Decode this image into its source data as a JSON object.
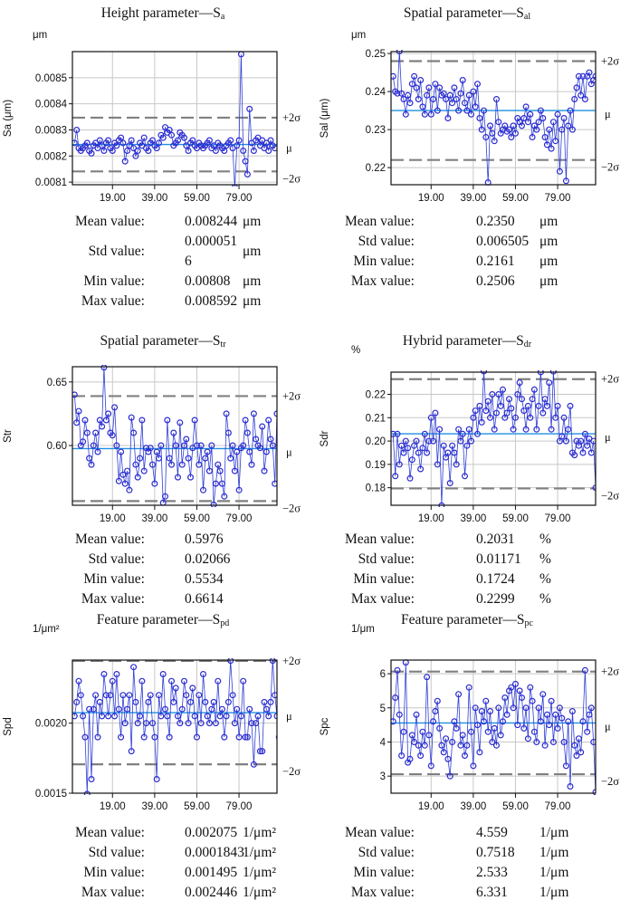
{
  "panels": [
    {
      "title_main": "Height parameter—S",
      "title_sub": "a",
      "chart_data": {
        "type": "line",
        "title": "Height parameter—Sa",
        "unit_label": "μm",
        "ylabel": "Sa (μm)",
        "ylim": [
          0.00809,
          0.0086
        ],
        "yticks": [
          0.0081,
          0.0082,
          0.0083,
          0.0084,
          0.0085
        ],
        "ytick_labels": [
          "0.0081",
          "0.0082",
          "0.0083",
          "0.0084",
          "0.0085"
        ],
        "xlim": [
          0,
          97
        ],
        "xticks": [
          19,
          39,
          59,
          79
        ],
        "xtick_labels": [
          "19.00",
          "39.00",
          "59.00",
          "79.00"
        ],
        "mean": 0.008244,
        "plus2sigma": 0.008347,
        "minus2sigma": 0.008141,
        "line_labels": {
          "plus": "+2σ",
          "mean": "μ",
          "minus": "−2σ"
        },
        "values": [
          0.00825,
          0.0083,
          0.00823,
          0.00822,
          0.00823,
          0.00824,
          0.00825,
          0.00822,
          0.00821,
          0.00824,
          0.00825,
          0.00823,
          0.00826,
          0.00824,
          0.00822,
          0.00825,
          0.00826,
          0.00823,
          0.00822,
          0.00825,
          0.00824,
          0.00826,
          0.00827,
          0.00825,
          0.00818,
          0.00822,
          0.00824,
          0.00826,
          0.00823,
          0.0082,
          0.00822,
          0.00825,
          0.00824,
          0.00827,
          0.00823,
          0.00822,
          0.00825,
          0.00826,
          0.00824,
          0.00823,
          0.00825,
          0.00828,
          0.00827,
          0.00831,
          0.00829,
          0.0083,
          0.00828,
          0.00824,
          0.00825,
          0.00826,
          0.00829,
          0.00828,
          0.00827,
          0.00824,
          0.00822,
          0.00825,
          0.00826,
          0.00824,
          0.00823,
          0.00825,
          0.00824,
          0.00823,
          0.00824,
          0.00825,
          0.00826,
          0.00823,
          0.00824,
          0.00822,
          0.00825,
          0.00824,
          0.00823,
          0.00822,
          0.00824,
          0.00825,
          0.00826,
          0.00823,
          0.00808,
          0.00824,
          0.00826,
          0.00859,
          0.00822,
          0.00818,
          0.00813,
          0.00838,
          0.00825,
          0.00822,
          0.00826,
          0.00827,
          0.00824,
          0.00826,
          0.00823,
          0.00825,
          0.00822,
          0.00826,
          0.00824,
          0.00823
        ]
      },
      "stats": [
        {
          "label": "Mean value:",
          "value": "0.008244",
          "unit": "μm"
        },
        {
          "label": "Std value:",
          "value": "0.000051\n6",
          "unit": "μm"
        },
        {
          "label": "Min value:",
          "value": "0.00808",
          "unit": "μm"
        },
        {
          "label": "Max value:",
          "value": "0.008592",
          "unit": "μm"
        }
      ]
    },
    {
      "title_main": "Spatial parameter—S",
      "title_sub": "al",
      "chart_data": {
        "type": "line",
        "title": "Spatial parameter—Sal",
        "unit_label": "μm",
        "ylabel": "Sal (μm)",
        "ylim": [
          0.2155,
          0.2505
        ],
        "yticks": [
          0.22,
          0.23,
          0.24,
          0.25
        ],
        "ytick_labels": [
          "0.22",
          "0.23",
          "0.24",
          "0.25"
        ],
        "xlim": [
          0,
          97
        ],
        "xticks": [
          19,
          39,
          59,
          79
        ],
        "xtick_labels": [
          "19.00",
          "39.00",
          "59.00",
          "79.00"
        ],
        "mean": 0.235,
        "plus2sigma": 0.248,
        "minus2sigma": 0.222,
        "line_labels": {
          "plus": "+2σ",
          "mean": "μ",
          "minus": "−2σ"
        },
        "values": [
          0.244,
          0.24,
          0.2395,
          0.2506,
          0.2395,
          0.238,
          0.234,
          0.239,
          0.237,
          0.242,
          0.244,
          0.241,
          0.238,
          0.243,
          0.236,
          0.234,
          0.239,
          0.241,
          0.234,
          0.238,
          0.242,
          0.235,
          0.241,
          0.239,
          0.2395,
          0.238,
          0.233,
          0.239,
          0.237,
          0.241,
          0.238,
          0.235,
          0.2395,
          0.243,
          0.237,
          0.235,
          0.239,
          0.234,
          0.24,
          0.236,
          0.242,
          0.233,
          0.23,
          0.235,
          0.228,
          0.2161,
          0.231,
          0.229,
          0.227,
          0.238,
          0.232,
          0.229,
          0.23,
          0.231,
          0.2295,
          0.23,
          0.228,
          0.231,
          0.229,
          0.233,
          0.232,
          0.231,
          0.233,
          0.236,
          0.232,
          0.234,
          0.228,
          0.231,
          0.23,
          0.232,
          0.235,
          0.233,
          0.228,
          0.226,
          0.23,
          0.225,
          0.232,
          0.227,
          0.234,
          0.219,
          0.23,
          0.233,
          0.2165,
          0.231,
          0.235,
          0.23,
          0.238,
          0.241,
          0.244,
          0.239,
          0.244,
          0.238,
          0.244,
          0.245,
          0.242,
          0.243,
          0.244
        ]
      },
      "stats": [
        {
          "label": "Mean value:",
          "value": "0.2350",
          "unit": "μm"
        },
        {
          "label": "Std value:",
          "value": "0.006505",
          "unit": "μm"
        },
        {
          "label": "Min value:",
          "value": "0.2161",
          "unit": "μm"
        },
        {
          "label": "Max value:",
          "value": "0.2506",
          "unit": "μm"
        }
      ]
    },
    {
      "title_main": "Spatial parameter—S",
      "title_sub": "tr",
      "chart_data": {
        "type": "line",
        "title": "Spatial parameter—Str",
        "unit_label": "",
        "ylabel": "Str",
        "ylim": [
          0.553,
          0.662
        ],
        "yticks": [
          0.6,
          0.65
        ],
        "ytick_labels": [
          "0.60",
          "0.65"
        ],
        "xlim": [
          0,
          97
        ],
        "xticks": [
          19,
          39,
          59,
          79
        ],
        "xtick_labels": [
          "19.00",
          "39.00",
          "59.00",
          "79.00"
        ],
        "mean": 0.5976,
        "plus2sigma": 0.6389,
        "minus2sigma": 0.5563,
        "line_labels": {
          "plus": "+2σ",
          "mean": "μ",
          "minus": "−2σ"
        },
        "values": [
          0.64,
          0.618,
          0.627,
          0.6,
          0.603,
          0.62,
          0.61,
          0.59,
          0.585,
          0.6,
          0.61,
          0.595,
          0.62,
          0.615,
          0.6614,
          0.62,
          0.625,
          0.61,
          0.608,
          0.63,
          0.6,
          0.572,
          0.595,
          0.577,
          0.57,
          0.58,
          0.565,
          0.622,
          0.61,
          0.585,
          0.575,
          0.59,
          0.62,
          0.58,
          0.598,
          0.595,
          0.598,
          0.585,
          0.57,
          0.595,
          0.59,
          0.6,
          0.555,
          0.56,
          0.62,
          0.59,
          0.585,
          0.61,
          0.6,
          0.575,
          0.618,
          0.585,
          0.6,
          0.605,
          0.59,
          0.575,
          0.598,
          0.62,
          0.6,
          0.585,
          0.6,
          0.565,
          0.59,
          0.595,
          0.58,
          0.6,
          0.5534,
          0.57,
          0.585,
          0.58,
          0.57,
          0.56,
          0.625,
          0.61,
          0.59,
          0.6,
          0.58,
          0.595,
          0.565,
          0.598,
          0.6,
          0.62,
          0.61,
          0.595,
          0.585,
          0.625,
          0.605,
          0.6,
          0.598,
          0.615,
          0.58,
          0.595,
          0.62,
          0.605,
          0.6,
          0.57,
          0.625
        ]
      },
      "stats": [
        {
          "label": "Mean value:",
          "value": "0.5976",
          "unit": ""
        },
        {
          "label": "Std value:",
          "value": "0.02066",
          "unit": ""
        },
        {
          "label": "Min value:",
          "value": "0.5534",
          "unit": ""
        },
        {
          "label": "Max value:",
          "value": "0.6614",
          "unit": ""
        }
      ]
    },
    {
      "title_main": "Hybrid parameter—S",
      "title_sub": "dr",
      "chart_data": {
        "type": "line",
        "title": "Hybrid parameter—Sdr",
        "unit_label": "%",
        "ylabel": "Sdr",
        "ylim": [
          0.1725,
          0.2295
        ],
        "yticks": [
          0.18,
          0.19,
          0.2,
          0.21,
          0.22
        ],
        "ytick_labels": [
          "0.18",
          "0.19",
          "0.20",
          "0.21",
          "0.22"
        ],
        "xlim": [
          0,
          97
        ],
        "xticks": [
          19,
          39,
          59,
          79
        ],
        "xtick_labels": [
          "19.00",
          "39.00",
          "59.00",
          "79.00"
        ],
        "mean": 0.2031,
        "plus2sigma": 0.2265,
        "minus2sigma": 0.1797,
        "line_labels": {
          "plus": "+2σ",
          "mean": "μ",
          "minus": "−2σ"
        },
        "values": [
          0.203,
          0.185,
          0.203,
          0.19,
          0.198,
          0.195,
          0.2,
          0.197,
          0.184,
          0.192,
          0.198,
          0.2,
          0.195,
          0.188,
          0.197,
          0.203,
          0.195,
          0.2,
          0.21,
          0.2,
          0.212,
          0.19,
          0.205,
          0.1724,
          0.198,
          0.193,
          0.195,
          0.182,
          0.198,
          0.195,
          0.19,
          0.205,
          0.2,
          0.203,
          0.185,
          0.198,
          0.205,
          0.2,
          0.21,
          0.213,
          0.203,
          0.215,
          0.208,
          0.2299,
          0.213,
          0.217,
          0.21,
          0.22,
          0.205,
          0.212,
          0.22,
          0.215,
          0.222,
          0.21,
          0.212,
          0.218,
          0.214,
          0.205,
          0.21,
          0.22,
          0.225,
          0.218,
          0.213,
          0.205,
          0.215,
          0.21,
          0.218,
          0.222,
          0.205,
          0.215,
          0.2295,
          0.212,
          0.218,
          0.215,
          0.225,
          0.205,
          0.2298,
          0.21,
          0.215,
          0.2,
          0.202,
          0.21,
          0.2,
          0.205,
          0.215,
          0.195,
          0.194,
          0.2,
          0.198,
          0.2,
          0.195,
          0.203,
          0.198,
          0.201,
          0.195,
          0.2,
          0.18
        ]
      },
      "stats": [
        {
          "label": "Mean value:",
          "value": "0.2031",
          "unit": "%"
        },
        {
          "label": "Std value:",
          "value": "0.01171",
          "unit": "%"
        },
        {
          "label": "Min value:",
          "value": "0.1724",
          "unit": "%"
        },
        {
          "label": "Max value:",
          "value": "0.2299",
          "unit": "%"
        }
      ]
    },
    {
      "title_main": "Feature parameter—S",
      "title_sub": "pd",
      "chart_data": {
        "type": "line",
        "title": "Feature parameter—Spd",
        "unit_label": "1/μm²",
        "ylabel": "Spd",
        "ylim": [
          0.0015,
          0.00245
        ],
        "yticks": [
          0.0015,
          0.002
        ],
        "ytick_labels": [
          "0.0015",
          "0.0020"
        ],
        "xlim": [
          0,
          97
        ],
        "xticks": [
          19,
          39,
          59,
          79
        ],
        "xtick_labels": [
          "19.00",
          "39.00",
          "59.00",
          "79.00"
        ],
        "mean": 0.002075,
        "plus2sigma": 0.002444,
        "minus2sigma": 0.001706,
        "line_labels": {
          "plus": "+2σ",
          "mean": "μ",
          "minus": "−2σ"
        },
        "values": [
          0.00205,
          0.00215,
          0.0023,
          0.0022,
          0.00205,
          0.0019,
          0.001495,
          0.0021,
          0.0016,
          0.0021,
          0.0022,
          0.0019,
          0.00215,
          0.00205,
          0.00235,
          0.0022,
          0.00205,
          0.0022,
          0.0023,
          0.00205,
          0.00235,
          0.0021,
          0.0019,
          0.0022,
          0.002,
          0.0021,
          0.0022,
          0.0018,
          0.0024,
          0.00215,
          0.002,
          0.00205,
          0.0023,
          0.0019,
          0.002,
          0.00215,
          0.0022,
          0.002,
          0.0019,
          0.0016,
          0.0022,
          0.00205,
          0.00235,
          0.0021,
          0.00205,
          0.0019,
          0.0023,
          0.00215,
          0.00225,
          0.00205,
          0.002,
          0.0021,
          0.0023,
          0.0022,
          0.002,
          0.00215,
          0.00225,
          0.00205,
          0.0019,
          0.0022,
          0.002,
          0.00235,
          0.00215,
          0.00205,
          0.002,
          0.0021,
          0.00215,
          0.002,
          0.0023,
          0.00205,
          0.0021,
          0.0019,
          0.00205,
          0.00215,
          0.002446,
          0.0022,
          0.002,
          0.0021,
          0.0019,
          0.00205,
          0.0023,
          0.0019,
          0.0019,
          0.0021,
          0.002,
          0.001705,
          0.002,
          0.00205,
          0.0018,
          0.0018,
          0.00215,
          0.0021,
          0.00205,
          0.00215,
          0.002446,
          0.0022,
          0.00205,
          0.0019
        ]
      },
      "stats": [
        {
          "label": "Mean value:",
          "value": "0.002075",
          "unit": "1/μm²"
        },
        {
          "label": "Std value:",
          "value": "0.0001843",
          "unit": "1/μm²"
        },
        {
          "label": "Min value:",
          "value": "0.001495",
          "unit": "1/μm²"
        },
        {
          "label": "Max value:",
          "value": "0.002446",
          "unit": "1/μm²"
        }
      ]
    },
    {
      "title_main": "Feature parameter—S",
      "title_sub": "pc",
      "chart_data": {
        "type": "line",
        "title": "Feature parameter—Spc",
        "unit_label": "1/μm",
        "ylabel": "Spc",
        "ylim": [
          2.5,
          6.4
        ],
        "yticks": [
          3,
          4,
          5,
          6
        ],
        "ytick_labels": [
          "3",
          "4",
          "5",
          "6"
        ],
        "xlim": [
          0,
          97
        ],
        "xticks": [
          19,
          39,
          59,
          79
        ],
        "xtick_labels": [
          "19.00",
          "39.00",
          "59.00",
          "79.00"
        ],
        "mean": 4.559,
        "plus2sigma": 6.063,
        "minus2sigma": 3.055,
        "line_labels": {
          "plus": "+2σ",
          "mean": "μ",
          "minus": "−2σ"
        },
        "values": [
          4.6,
          5.3,
          6.1,
          4.8,
          3.6,
          4.3,
          6.331,
          3.4,
          3.5,
          4.2,
          4.0,
          4.8,
          3.9,
          3.6,
          4.3,
          3.9,
          5.9,
          4.2,
          3.3,
          4.6,
          4.9,
          5.2,
          4.4,
          3.9,
          3.7,
          4.1,
          3.5,
          3.0,
          4.0,
          4.6,
          4.4,
          5.4,
          3.9,
          4.2,
          3.6,
          3.9,
          5.6,
          4.3,
          3.3,
          5.0,
          4.5,
          3.7,
          4.9,
          4.6,
          5.2,
          4.3,
          4.9,
          4.0,
          4.4,
          3.9,
          5.0,
          4.2,
          4.6,
          5.3,
          4.8,
          5.5,
          5.6,
          5.0,
          5.7,
          4.5,
          5.5,
          5.3,
          4.4,
          5.0,
          4.1,
          5.6,
          5.2,
          4.3,
          4.0,
          5.0,
          4.6,
          5.4,
          3.9,
          4.8,
          4.5,
          5.2,
          4.0,
          4.8,
          4.4,
          5.0,
          4.7,
          4.0,
          3.3,
          4.6,
          2.7,
          4.9,
          3.9,
          3.6,
          4.1,
          3.7,
          4.6,
          6.1,
          4.3,
          4.8,
          5.0,
          4.0,
          2.533
        ]
      },
      "stats": [
        {
          "label": "Mean value:",
          "value": "4.559",
          "unit": "1/μm"
        },
        {
          "label": "Std value:",
          "value": "0.7518",
          "unit": "1/μm"
        },
        {
          "label": "Min value:",
          "value": "2.533",
          "unit": "1/μm"
        },
        {
          "label": "Max value:",
          "value": "6.331",
          "unit": "1/μm"
        }
      ]
    }
  ],
  "colors": {
    "series": "#2f3fd6",
    "marker": "#2b2bd0",
    "mean_line": "#1e8fe0",
    "sigma_line": "#808080",
    "grid": "#c8c8c8"
  }
}
